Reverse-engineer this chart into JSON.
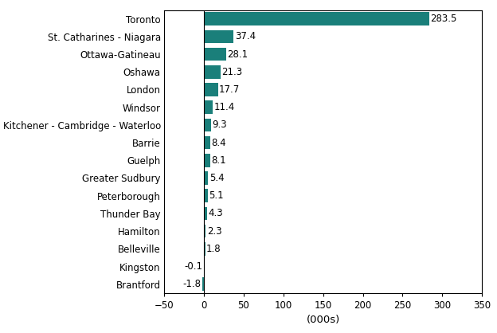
{
  "categories": [
    "Toronto",
    "St. Catharines - Niagara",
    "Ottawa-Gatineau",
    "Oshawa",
    "London",
    "Windsor",
    "Kitchener - Cambridge - Waterloo",
    "Barrie",
    "Guelph",
    "Greater Sudbury",
    "Peterborough",
    "Thunder Bay",
    "Hamilton",
    "Belleville",
    "Kingston",
    "Brantford"
  ],
  "values": [
    283.5,
    37.4,
    28.1,
    21.3,
    17.7,
    11.4,
    9.3,
    8.4,
    8.1,
    5.4,
    5.1,
    4.3,
    2.3,
    1.8,
    -0.1,
    -1.8
  ],
  "bar_color": "#1a7f7a",
  "xlabel": "(000s)",
  "xlim": [
    -50,
    350
  ],
  "xticks": [
    -50,
    0,
    50,
    100,
    150,
    200,
    250,
    300,
    350
  ],
  "background_color": "#ffffff",
  "label_fontsize": 8.5,
  "xlabel_fontsize": 9.5,
  "bar_height": 0.75
}
